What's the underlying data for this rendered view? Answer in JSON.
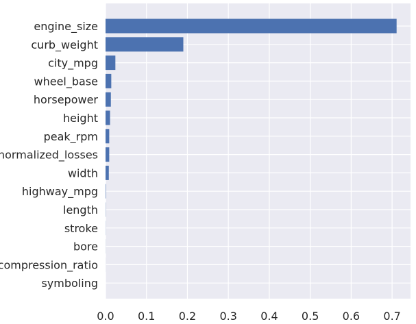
{
  "chart_data": {
    "type": "bar",
    "orientation": "horizontal",
    "categories": [
      "engine_size",
      "curb_weight",
      "city_mpg",
      "wheel_base",
      "horsepower",
      "height",
      "peak_rpm",
      "normalized_losses",
      "width",
      "highway_mpg",
      "length",
      "stroke",
      "bore",
      "compression_ratio",
      "symboling"
    ],
    "values": [
      0.711,
      0.19,
      0.024,
      0.014,
      0.013,
      0.011,
      0.009,
      0.009,
      0.008,
      0.001,
      0.0005,
      0.0003,
      0.0002,
      0.0001,
      0.0
    ],
    "xlim": [
      0,
      0.745
    ],
    "xticks": [
      0.0,
      0.1,
      0.2,
      0.3,
      0.4,
      0.5,
      0.6,
      0.7
    ],
    "xtick_labels": [
      "0.0",
      "0.1",
      "0.2",
      "0.3",
      "0.4",
      "0.5",
      "0.6",
      "0.7"
    ],
    "title": "",
    "xlabel": "",
    "ylabel": "",
    "grid": true,
    "legend": "none",
    "style": "seaborn-darkgrid",
    "colors": {
      "bar": "#4c72b0",
      "plot_background": "#eaeaf2",
      "grid": "#ffffff",
      "text": "#262626"
    }
  }
}
